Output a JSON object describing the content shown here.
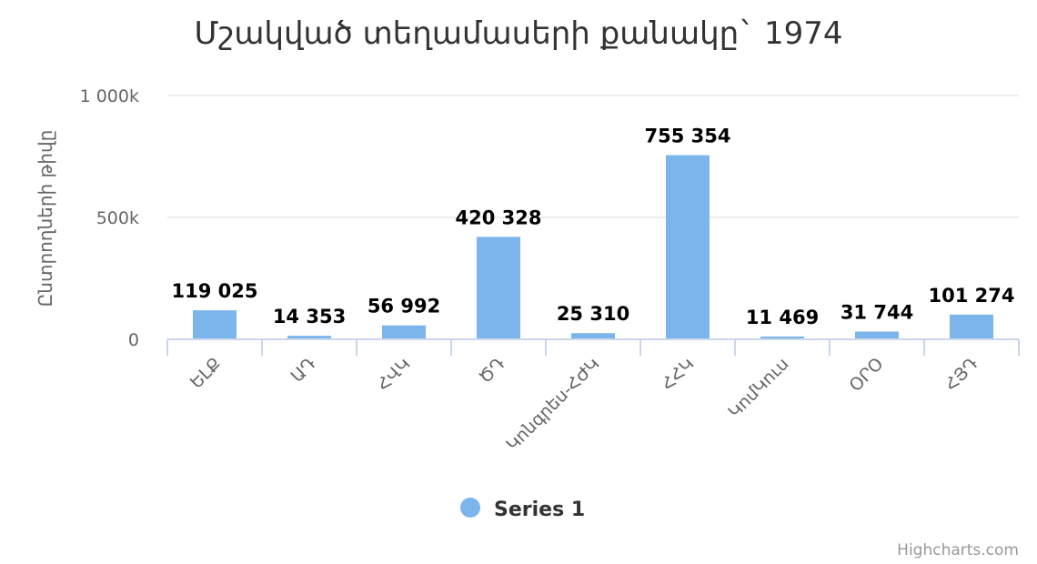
{
  "chart_data": {
    "type": "bar",
    "title": "Մշակված տեղամասերի քանակը` 1974",
    "ylabel": "Ընտրողների թիվը",
    "xlabel": "",
    "categories": [
      "ԵԼՔ",
      "ԱԴ",
      "ՀՎԿ",
      "ԾԴ",
      "Կոնգրես-ՀԺԿ",
      "ՀՀԿ",
      "ԿոմԿուս",
      "ՕՐՕ",
      "ՀՅԴ"
    ],
    "series": [
      {
        "name": "Series 1",
        "values": [
          119025,
          14353,
          56992,
          420328,
          25310,
          755354,
          11469,
          31744,
          101274
        ],
        "labels": [
          "119 025",
          "14 353",
          "56 992",
          "420 328",
          "25 310",
          "755 354",
          "11 469",
          "31 744",
          "101 274"
        ],
        "color": "#7cb5ec"
      }
    ],
    "ylim": [
      0,
      1000000
    ],
    "yticks": [
      {
        "value": 0,
        "label": "0"
      },
      {
        "value": 500000,
        "label": "500k"
      },
      {
        "value": 1000000,
        "label": "1 000k"
      }
    ],
    "grid": true,
    "legend": "bottom-center"
  },
  "credits": "Highcharts.com",
  "colors": {
    "grid": "#e6e6e6",
    "axis": "#ccd6eb"
  }
}
